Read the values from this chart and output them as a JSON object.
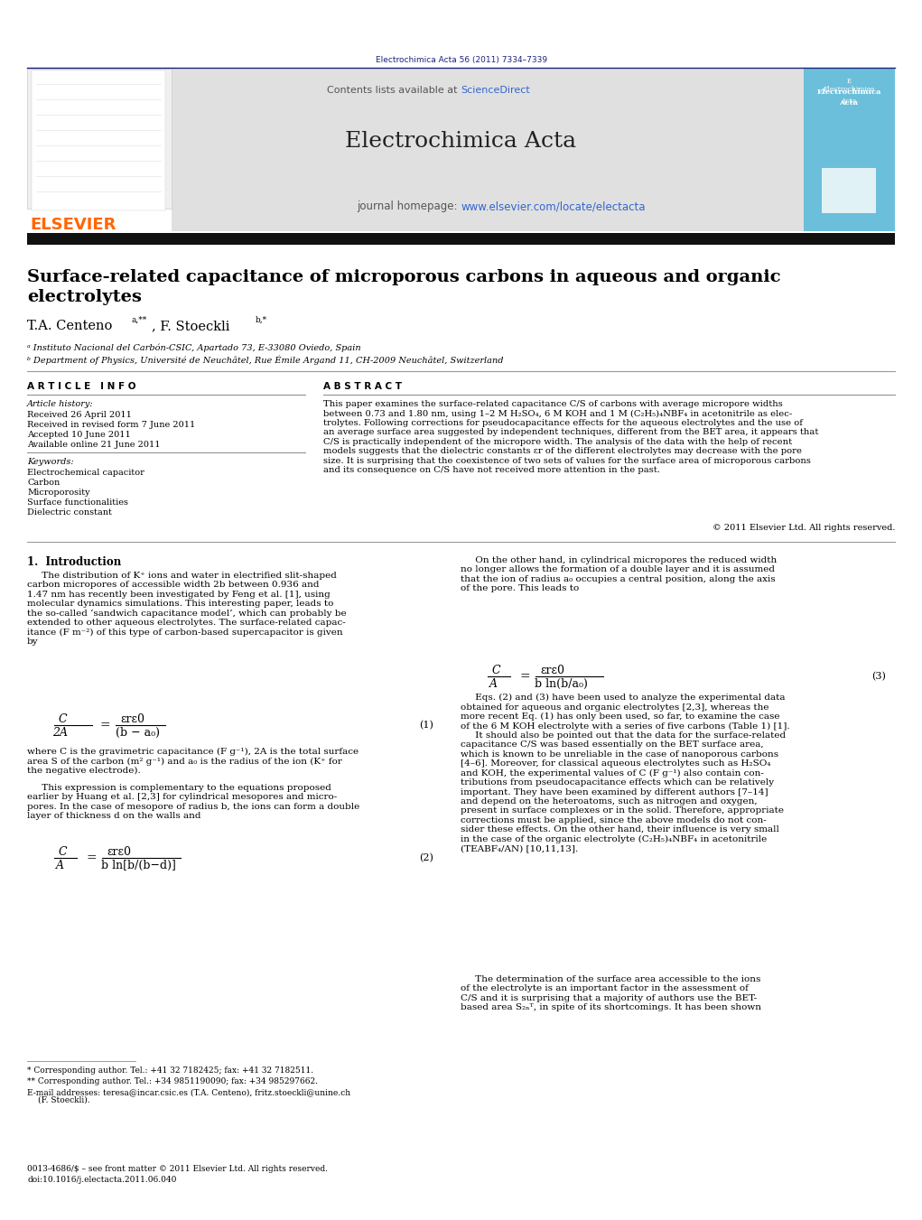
{
  "page_width": 10.21,
  "page_height": 13.51,
  "dpi": 100,
  "bg_color": "#ffffff",
  "header_cite_color": "#1a237e",
  "header_cite": "Electrochimica Acta 56 (2011) 7334–7339",
  "journal_header_bg": "#e0e0e0",
  "journal_title": "Electrochimica Acta",
  "journal_homepage_pre": "journal homepage: ",
  "journal_homepage_url": "www.elsevier.com/locate/electacta",
  "contents_pre": "Contents lists available at ",
  "sciencedirect_text": "ScienceDirect",
  "elsevier_orange": "#ff6600",
  "sciencedirect_color": "#3366cc",
  "url_color": "#3366cc",
  "ref_color": "#3366cc",
  "dark_bar_color": "#111111",
  "paper_title_line1": "Surface-related capacitance of microporous carbons in aqueous and organic",
  "paper_title_line2": "electrolytes",
  "authors_line": "T.A. Centeno a,**, F. Stoeckli b,*",
  "affil_a": "ᵃ Instituto Nacional del Carbón-CSIC, Apartado 73, E-33080 Oviedo, Spain",
  "affil_b": "ᵇ Department of Physics, Université de Neuchâtel, Rue Émile Argand 11, CH-2009 Neuchâtel, Switzerland",
  "art_info_hdr": "A R T I C L E   I N F O",
  "abstract_hdr": "A B S T R A C T",
  "art_history": "Article history:",
  "received": "Received 26 April 2011",
  "revised": "Received in revised form 7 June 2011",
  "accepted": "Accepted 10 June 2011",
  "online": "Available online 21 June 2011",
  "keywords_lbl": "Keywords:",
  "kw": [
    "Electrochemical capacitor",
    "Carbon",
    "Microporosity",
    "Surface functionalities",
    "Dielectric constant"
  ],
  "abstract_body": "This paper examines the surface-related capacitance C/S of carbons with average micropore widths\nbetween 0.73 and 1.80 nm, using 1–2 M H₂SO₄, 6 M KOH and 1 M (C₂H₅)₄NBF₄ in acetonitrile as elec-\ntrolytes. Following corrections for pseudocapacitance effects for the aqueous electrolytes and the use of\nan average surface area suggested by independent techniques, different from the BET area, it appears that\nC/S is practically independent of the micropore width. The analysis of the data with the help of recent\nmodels suggests that the dielectric constants εr of the different electrolytes may decrease with the pore\nsize. It is surprising that the coexistence of two sets of values for the surface area of microporous carbons\nand its consequence on C/S have not received more attention in the past.",
  "copyright": "© 2011 Elsevier Ltd. All rights reserved.",
  "intro_hdr": "1.  Introduction",
  "intro_p1": "     The distribution of K⁺ ions and water in electrified slit-shaped\ncarbon micropores of accessible width 2b between 0.936 and\n1.47 nm has recently been investigated by Feng et al. [1], using\nmolecular dynamics simulations. This interesting paper, leads to\nthe so-called ‘sandwich capacitance model’, which can probably be\nextended to other aqueous electrolytes. The surface-related capac-\nitance (F m⁻²) of this type of carbon-based supercapacitor is given\nby",
  "eq1_frac_num": "C",
  "eq1_frac_den": "2A",
  "eq1_rhs_num": "εrε0",
  "eq1_rhs_den": "(b − a₀)",
  "eq1_num": "(1)",
  "eq1_where": "where C is the gravimetric capacitance (F g⁻¹), 2A is the total surface\narea S of the carbon (m² g⁻¹) and a₀ is the radius of the ion (K⁺ for\nthe negative electrode).",
  "intro_p2": "     This expression is complementary to the equations proposed\nearlier by Huang et al. [2,3] for cylindrical mesopores and micro-\npores. In the case of mesopore of radius b, the ions can form a double\nlayer of thickness d on the walls and",
  "eq2_frac_num": "C",
  "eq2_frac_den": "A",
  "eq2_rhs_num": "εrε0",
  "eq2_rhs_den": "b ln[b/(b−d)]",
  "eq2_num": "(2)",
  "right_p1": "     On the other hand, in cylindrical micropores the reduced width\nno longer allows the formation of a double layer and it is assumed\nthat the ion of radius a₀ occupies a central position, along the axis\nof the pore. This leads to",
  "eq3_frac_num": "C",
  "eq3_frac_den": "A",
  "eq3_rhs_num": "εrε0",
  "eq3_rhs_den": "b ln(b/a₀)",
  "eq3_num": "(3)",
  "right_p2": "     Eqs. (2) and (3) have been used to analyze the experimental data\nobtained for aqueous and organic electrolytes [2,3], whereas the\nmore recent Eq. (1) has only been used, so far, to examine the case\nof the 6 M KOH electrolyte with a series of five carbons (Table 1) [1].\n     It should also be pointed out that the data for the surface-related\ncapacitance C/S was based essentially on the BET surface area,\nwhich is known to be unreliable in the case of nanoporous carbons\n[4–6]. Moreover, for classical aqueous electrolytes such as H₂SO₄\nand KOH, the experimental values of C (F g⁻¹) also contain con-\ntributions from pseudocapacitance effects which can be relatively\nimportant. They have been examined by different authors [7–14]\nand depend on the heteroatoms, such as nitrogen and oxygen,\npresent in surface complexes or in the solid. Therefore, appropriate\ncorrections must be applied, since the above models do not con-\nsider these effects. On the other hand, their influence is very small\nin the case of the organic electrolyte (C₂H₅)₄NBF₄ in acetonitrile\n(TEABF₄/AN) [10,11,13].",
  "right_p3": "     The determination of the surface area accessible to the ions\nof the electrolyte is an important factor in the assessment of\nC/S and it is surprising that a majority of authors use the BET-\nbased area S₂ₙᵀ, in spite of its shortcomings. It has been shown",
  "fn1": "* Corresponding author. Tel.: +41 32 7182425; fax: +41 32 7182511.",
  "fn2": "** Corresponding author. Tel.: +34 9851190090; fax: +34 985297662.",
  "fn3": "E-mail addresses: teresa@incar.csic.es (T.A. Centeno), fritz.stoeckli@unine.ch",
  "fn3b": "(F. Stoeckli).",
  "footer1": "0013-4686/$ – see front matter © 2011 Elsevier Ltd. All rights reserved.",
  "footer2": "doi:10.1016/j.electacta.2011.06.040"
}
